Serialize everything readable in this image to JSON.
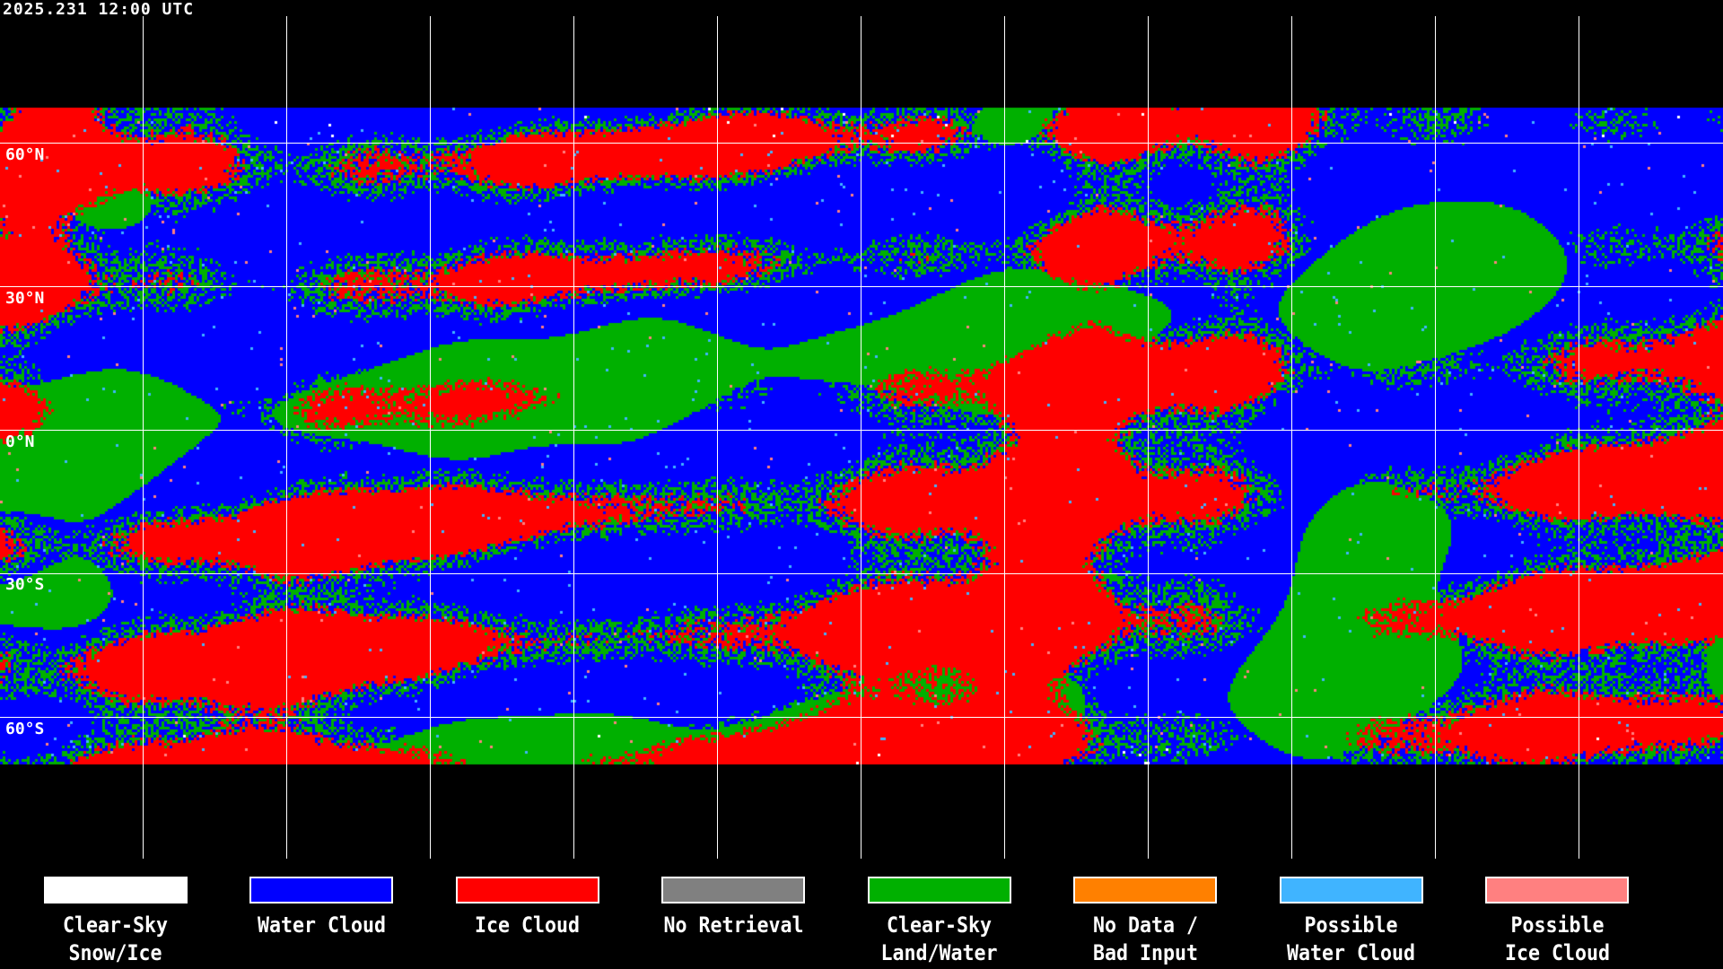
{
  "title": "2025.231 12:00 UTC",
  "latitude_labels": [
    "60°N",
    "30°N",
    "0°N",
    "30°S",
    "60°S"
  ],
  "legend": [
    {
      "line1": "Clear-Sky",
      "line2": "Snow/Ice",
      "color": "#FFFFFF"
    },
    {
      "line1": "Water Cloud",
      "line2": "",
      "color": "#0000FF"
    },
    {
      "line1": "Ice Cloud",
      "line2": "",
      "color": "#FF0000"
    },
    {
      "line1": "No Retrieval",
      "line2": "",
      "color": "#808080"
    },
    {
      "line1": "Clear-Sky",
      "line2": "Land/Water",
      "color": "#00B000"
    },
    {
      "line1": "No Data /",
      "line2": "Bad Input",
      "color": "#FF8000"
    },
    {
      "line1": "Possible",
      "line2": "Water Cloud",
      "color": "#40B4FF"
    },
    {
      "line1": "Possible",
      "line2": "Ice Cloud",
      "color": "#FF8080"
    }
  ]
}
